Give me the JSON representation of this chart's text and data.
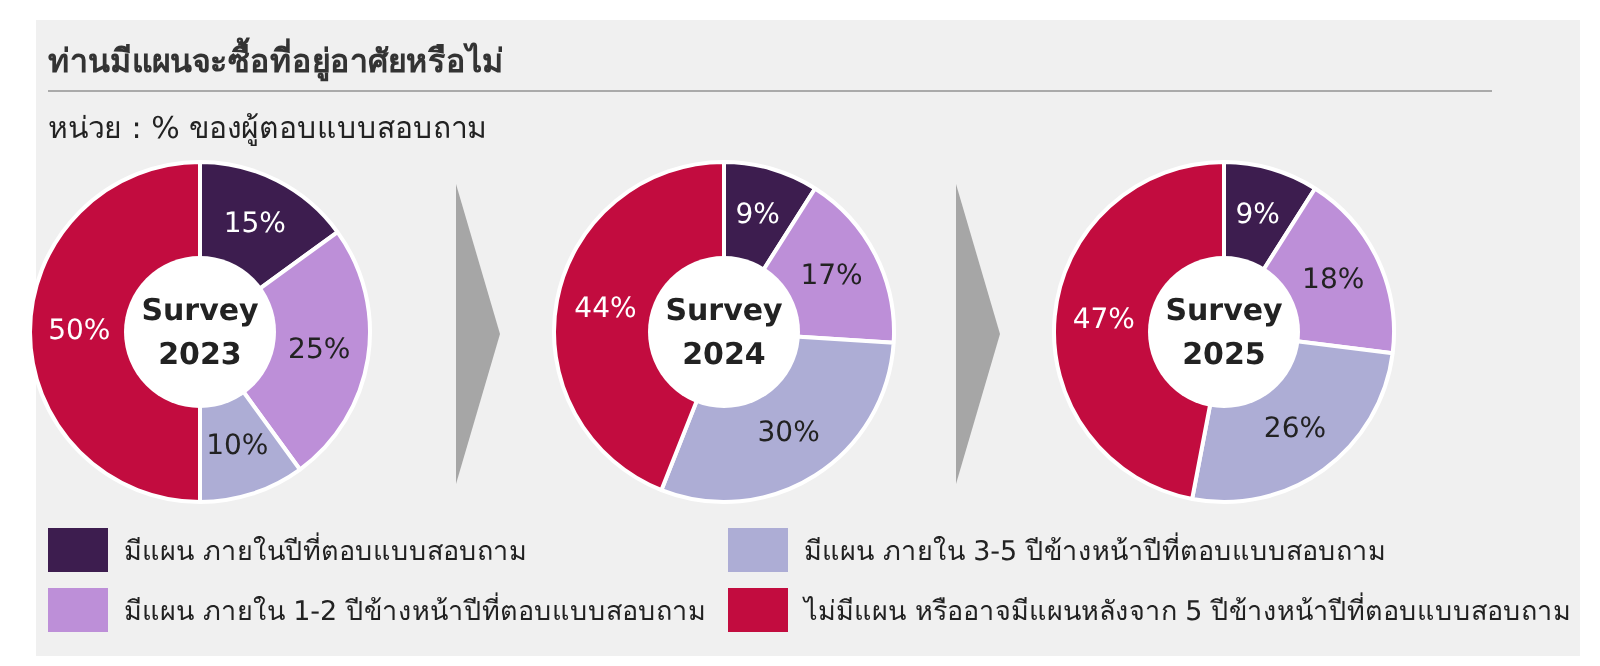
{
  "chart_data": [
    {
      "type": "donut",
      "title": "ท่านมีแผนจะซื้อที่อยู่อาศัยหรือไม่",
      "subtitle": "หน่วย : % ของผู้ตอบแบบสอบถาม",
      "annotations": [
        "Survey 2023"
      ],
      "categories": [
        "มีแผน ภายในปีที่ตอบแบบสอบถาม",
        "มีแผน ภายใน 1-2 ปีข้างหน้าปีที่ตอบแบบสอบถาม",
        "มีแผน ภายใน 3-5 ปีข้างหน้าปีที่ตอบแบบสอบถาม",
        "ไม่มีแผน หรืออาจมีแผนหลังจาก 5 ปีข้างหน้าปีที่ตอบแบบสอบถาม"
      ],
      "values": [
        15,
        25,
        10,
        50
      ],
      "value_labels": [
        "15%",
        "25%",
        "10%",
        "50%"
      ],
      "colors": [
        "#3d1d4f",
        "#bd8fd8",
        "#adadd5",
        "#c20c3f"
      ],
      "legend": "bottom"
    },
    {
      "type": "donut",
      "annotations": [
        "Survey 2024"
      ],
      "categories": [
        null,
        null,
        null,
        null
      ],
      "values": [
        9,
        17,
        30,
        44
      ],
      "value_labels": [
        "9%",
        "17%",
        "30%",
        "44%"
      ],
      "colors": [
        "#3d1d4f",
        "#bd8fd8",
        "#adadd5",
        "#c20c3f"
      ]
    },
    {
      "type": "donut",
      "annotations": [
        "Survey 2025"
      ],
      "categories": [
        null,
        null,
        null,
        null
      ],
      "values": [
        9,
        18,
        26,
        47
      ],
      "value_labels": [
        "9%",
        "18%",
        "26%",
        "47%"
      ],
      "colors": [
        "#3d1d4f",
        "#bd8fd8",
        "#adadd5",
        "#c20c3f"
      ]
    }
  ]
}
